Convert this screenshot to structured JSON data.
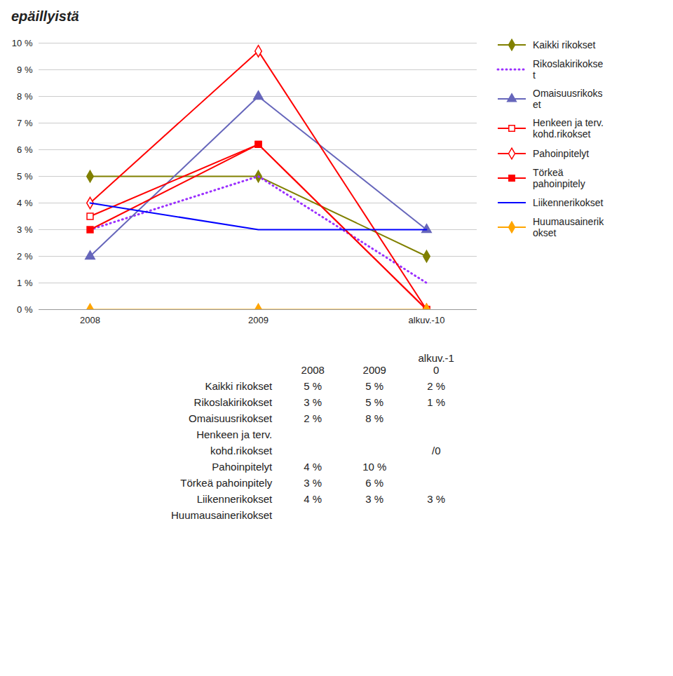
{
  "chart_data": {
    "type": "line",
    "title": "epäillyistä",
    "categories": [
      "2008",
      "2009",
      "alkuv.-10"
    ],
    "series": [
      {
        "name": "Kaikki rikokset",
        "color": "#808000",
        "values": [
          5,
          5,
          2
        ],
        "marker": "diamond",
        "line_style": "solid"
      },
      {
        "name": "Rikoslakirikokse\nt",
        "color": "#9B30FF",
        "values": [
          3,
          5,
          1
        ],
        "marker": "none",
        "line_style": "dotted"
      },
      {
        "name": "Omaisuusrikoks\net",
        "color": "#6666BB",
        "values": [
          2,
          8,
          3
        ],
        "marker": "triangle",
        "line_style": "solid"
      },
      {
        "name": "Henkeen ja terv.\nkohd.rikokset",
        "color": "#FF0000",
        "values": [
          3.5,
          6.2,
          0
        ],
        "marker": "square-open",
        "line_style": "solid"
      },
      {
        "name": "Pahoinpitelyt",
        "color": "#FF0000",
        "values": [
          4,
          9.7,
          0
        ],
        "marker": "diamond-open",
        "line_style": "solid"
      },
      {
        "name": "Törkeä\npahoinpitely",
        "color": "#FF0000",
        "values": [
          3,
          6.2,
          0
        ],
        "marker": "square",
        "line_style": "solid"
      },
      {
        "name": "Liikennerikokset",
        "color": "#0000FF",
        "values": [
          4,
          3,
          3
        ],
        "marker": "none",
        "line_style": "solid"
      },
      {
        "name": "Huumausainerik\nokset",
        "color": "#FFA500",
        "values": [
          0,
          0,
          0
        ],
        "marker": "diamond",
        "line_style": "solid"
      }
    ],
    "ylim": [
      0,
      10
    ],
    "yticks": [
      {
        "value": 0,
        "label": "0 %"
      },
      {
        "value": 1,
        "label": "1 %"
      },
      {
        "value": 2,
        "label": "2 %"
      },
      {
        "value": 3,
        "label": "3 %"
      },
      {
        "value": 4,
        "label": "4 %"
      },
      {
        "value": 5,
        "label": "5 %"
      },
      {
        "value": 6,
        "label": "6 %"
      },
      {
        "value": 7,
        "label": "7 %"
      },
      {
        "value": 8,
        "label": "8 %"
      },
      {
        "value": 9,
        "label": "9 %"
      },
      {
        "value": 10,
        "label": "10 %"
      }
    ],
    "grid": true,
    "legend": "right",
    "table": {
      "columns": [
        "2008",
        "2009",
        "alkuv.-1\n0"
      ],
      "rows": [
        [
          "Kaikki rikokset",
          "5 %",
          "5 %",
          "2 %"
        ],
        [
          "Rikoslakirikokset",
          "3 %",
          "5 %",
          "1 %"
        ],
        [
          "Omaisuusrikokset",
          "2 %",
          "8 %",
          null
        ],
        [
          "Henkeen ja terv.",
          null,
          null,
          null
        ],
        [
          "kohd.rikokset",
          null,
          null,
          "/0"
        ],
        [
          "Pahoinpitelyt",
          "4 %",
          "10 %",
          null
        ],
        [
          "Törkeä pahoinpitely",
          "3 %",
          "6 %",
          null
        ],
        [
          "Liikennerikokset",
          "4 %",
          "3 %",
          "3 %"
        ],
        [
          "Huumausainerikokset",
          null,
          null,
          null
        ]
      ]
    }
  }
}
